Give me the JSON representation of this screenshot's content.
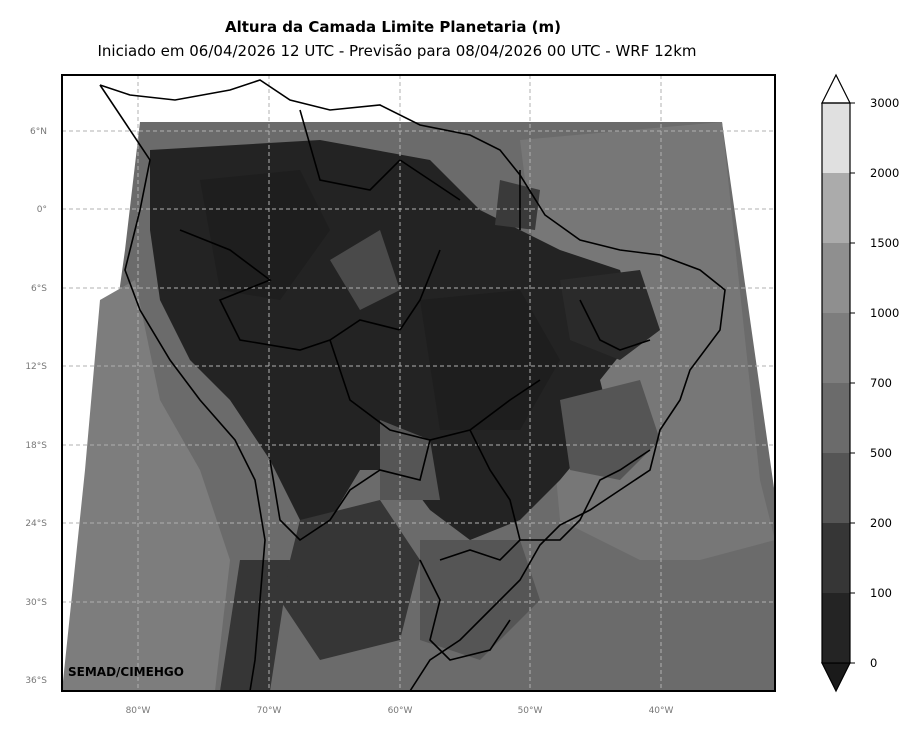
{
  "title": "Altura da Camada Limite Planetaria (m)",
  "subtitle": "Iniciado em 06/04/2026 12 UTC - Previsão para 08/04/2026 00 UTC - WRF 12km",
  "map": {
    "lat_labels": [
      "6°N",
      "0°",
      "6°S",
      "12°S",
      "18°S",
      "24°S",
      "30°S",
      "36°S"
    ],
    "lon_labels": [
      "80°W",
      "70°W",
      "60°W",
      "50°W",
      "40°W"
    ],
    "credit": "SEMAD/CIMEHGO",
    "gridlines": true
  },
  "colorbar": {
    "levels": [
      "0",
      "100",
      "200",
      "500",
      "700",
      "1000",
      "1500",
      "2000",
      "3000"
    ],
    "colors": [
      "#1a1a1a",
      "#242424",
      "#363636",
      "#555555",
      "#6b6b6b",
      "#7d7d7d",
      "#8f8f8f",
      "#ababab",
      "#e0e0e0",
      "#ffffff"
    ]
  }
}
